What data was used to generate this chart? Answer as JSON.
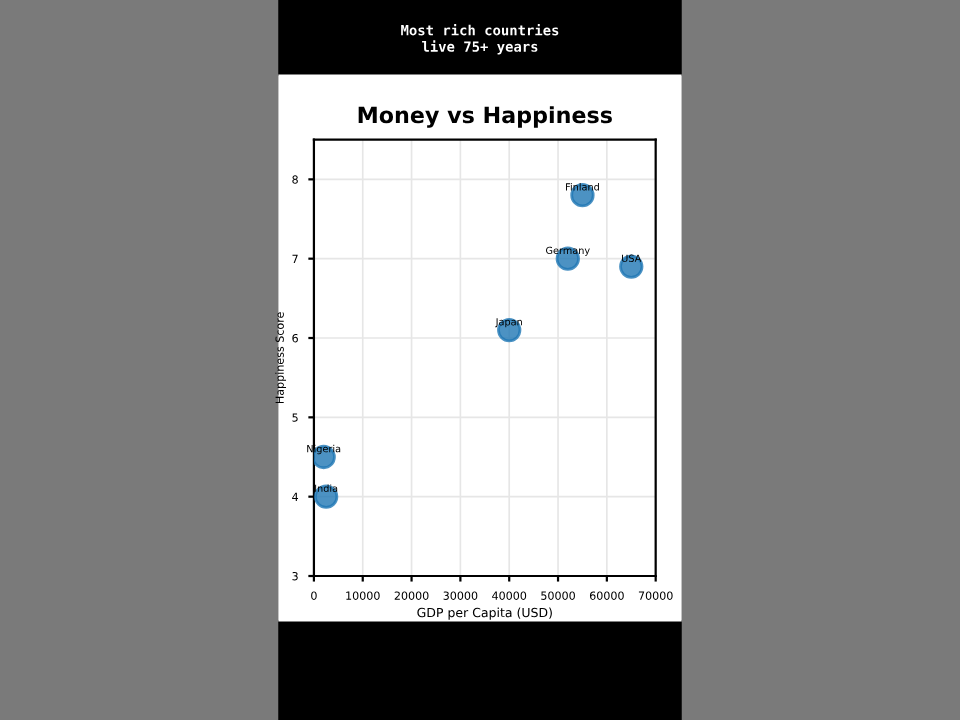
{
  "chart_data": {
    "type": "scatter",
    "title": "Money vs Happiness",
    "xlabel": "GDP per Capita (USD)",
    "ylabel": "Happiness Score",
    "x": [
      55000,
      52000,
      65000,
      40000,
      2000,
      2500
    ],
    "series": [
      {
        "color": "#1f77b4",
        "values": [
          7.8,
          7.0,
          6.9,
          6.1,
          4.5,
          4.0
        ]
      }
    ],
    "annotations": [
      "Most rich countries\nlive 75+ years",
      {
        "text": "Finland",
        "x": 55000,
        "y": 7.8
      },
      {
        "text": "Germany",
        "x": 52000,
        "y": 7.0
      },
      {
        "text": "USA",
        "x": 65000,
        "y": 6.9
      },
      {
        "text": "Japan",
        "x": 40000,
        "y": 6.1
      },
      {
        "text": "Nigeria",
        "x": 2000,
        "y": 4.5
      },
      {
        "text": "India",
        "x": 2500,
        "y": 4.0
      }
    ],
    "xlim": [
      0,
      70000
    ],
    "ylim": [
      3,
      8.5
    ],
    "xticks": [
      0,
      10000,
      20000,
      30000,
      40000,
      50000,
      60000,
      70000
    ],
    "yticks": [
      3,
      4,
      5,
      6,
      7,
      8
    ],
    "grid": true,
    "marker": "circle"
  }
}
